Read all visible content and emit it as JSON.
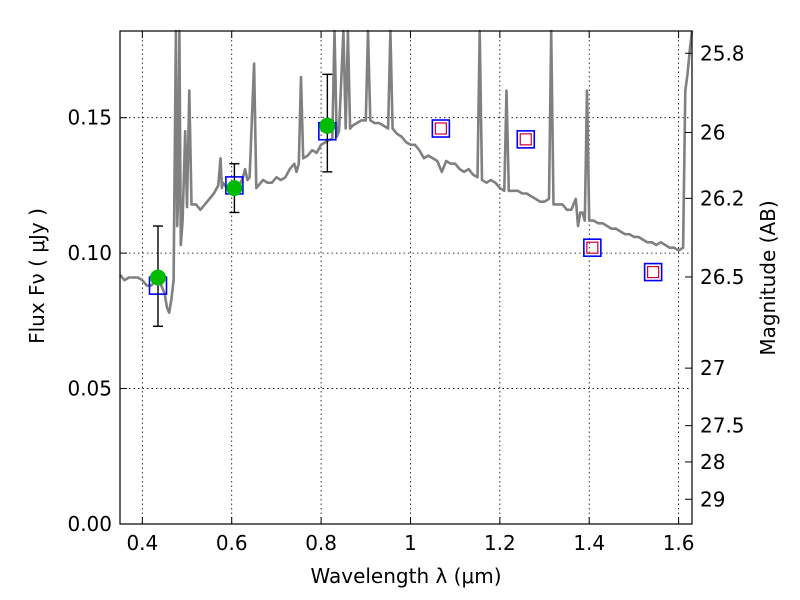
{
  "chart_data": {
    "type": "scatter",
    "xlabel": "Wavelength  λ (μm)",
    "ylabel": "Flux  Fν  ( μJy )",
    "y2label": "Magnitude (AB)",
    "xlim": [
      0.35,
      1.63
    ],
    "ylim": [
      0.0,
      0.182
    ],
    "grid": true,
    "x_ticks": [
      {
        "value": 0.4,
        "label": "0.4"
      },
      {
        "value": 0.6,
        "label": "0.6"
      },
      {
        "value": 0.8,
        "label": "0.8"
      },
      {
        "value": 1.0,
        "label": "1"
      },
      {
        "value": 1.2,
        "label": "1.2"
      },
      {
        "value": 1.4,
        "label": "1.4"
      },
      {
        "value": 1.6,
        "label": "1.6"
      }
    ],
    "y_ticks": [
      {
        "value": 0.0,
        "label": "0.00"
      },
      {
        "value": 0.05,
        "label": "0.05"
      },
      {
        "value": 0.1,
        "label": "0.10"
      },
      {
        "value": 0.15,
        "label": "0.15"
      }
    ],
    "mag_ticks": [
      {
        "mag": 25.8,
        "label": "25.8"
      },
      {
        "mag": 26.0,
        "label": "26"
      },
      {
        "mag": 26.2,
        "label": "26.2"
      },
      {
        "mag": 26.5,
        "label": "26.5"
      },
      {
        "mag": 27.0,
        "label": "27"
      },
      {
        "mag": 27.5,
        "label": "27.5"
      },
      {
        "mag": 28.0,
        "label": "28"
      },
      {
        "mag": 29.0,
        "label": "29"
      }
    ],
    "series": [
      {
        "kind": "spectrum",
        "color": "#808080",
        "points": [
          [
            0.35,
            0.092
          ],
          [
            0.36,
            0.09
          ],
          [
            0.37,
            0.091
          ],
          [
            0.38,
            0.091
          ],
          [
            0.39,
            0.091
          ],
          [
            0.4,
            0.09
          ],
          [
            0.41,
            0.088
          ],
          [
            0.42,
            0.088
          ],
          [
            0.43,
            0.09
          ],
          [
            0.44,
            0.089
          ],
          [
            0.45,
            0.085
          ],
          [
            0.455,
            0.08
          ],
          [
            0.46,
            0.078
          ],
          [
            0.465,
            0.083
          ],
          [
            0.47,
            0.09
          ],
          [
            0.475,
            0.182
          ],
          [
            0.478,
            0.11
          ],
          [
            0.48,
            0.12
          ],
          [
            0.483,
            0.182
          ],
          [
            0.486,
            0.103
          ],
          [
            0.49,
            0.112
          ],
          [
            0.496,
            0.145
          ],
          [
            0.5,
            0.117
          ],
          [
            0.505,
            0.16
          ],
          [
            0.51,
            0.118
          ],
          [
            0.52,
            0.118
          ],
          [
            0.53,
            0.116
          ],
          [
            0.54,
            0.118
          ],
          [
            0.55,
            0.12
          ],
          [
            0.56,
            0.122
          ],
          [
            0.57,
            0.125
          ],
          [
            0.575,
            0.135
          ],
          [
            0.578,
            0.124
          ],
          [
            0.58,
            0.126
          ],
          [
            0.59,
            0.124
          ],
          [
            0.6,
            0.122
          ],
          [
            0.61,
            0.124
          ],
          [
            0.62,
            0.126
          ],
          [
            0.625,
            0.128
          ],
          [
            0.63,
            0.131
          ],
          [
            0.635,
            0.127
          ],
          [
            0.64,
            0.128
          ],
          [
            0.65,
            0.17
          ],
          [
            0.655,
            0.124
          ],
          [
            0.66,
            0.125
          ],
          [
            0.67,
            0.127
          ],
          [
            0.68,
            0.126
          ],
          [
            0.69,
            0.126
          ],
          [
            0.7,
            0.128
          ],
          [
            0.71,
            0.127
          ],
          [
            0.72,
            0.128
          ],
          [
            0.73,
            0.131
          ],
          [
            0.74,
            0.133
          ],
          [
            0.745,
            0.13
          ],
          [
            0.75,
            0.133
          ],
          [
            0.755,
            0.165
          ],
          [
            0.76,
            0.135
          ],
          [
            0.77,
            0.136
          ],
          [
            0.78,
            0.138
          ],
          [
            0.79,
            0.137
          ],
          [
            0.8,
            0.14
          ],
          [
            0.81,
            0.141
          ],
          [
            0.82,
            0.142
          ],
          [
            0.825,
            0.142
          ],
          [
            0.83,
            0.182
          ],
          [
            0.835,
            0.143
          ],
          [
            0.84,
            0.145
          ],
          [
            0.85,
            0.182
          ],
          [
            0.855,
            0.146
          ],
          [
            0.86,
            0.182
          ],
          [
            0.865,
            0.146
          ],
          [
            0.87,
            0.147
          ],
          [
            0.88,
            0.148
          ],
          [
            0.89,
            0.149
          ],
          [
            0.9,
            0.149
          ],
          [
            0.905,
            0.182
          ],
          [
            0.91,
            0.149
          ],
          [
            0.92,
            0.148
          ],
          [
            0.93,
            0.148
          ],
          [
            0.94,
            0.147
          ],
          [
            0.95,
            0.146
          ],
          [
            0.955,
            0.182
          ],
          [
            0.96,
            0.146
          ],
          [
            0.97,
            0.144
          ],
          [
            0.98,
            0.143
          ],
          [
            0.99,
            0.141
          ],
          [
            1.0,
            0.14
          ],
          [
            1.01,
            0.14
          ],
          [
            1.02,
            0.138
          ],
          [
            1.03,
            0.135
          ],
          [
            1.04,
            0.136
          ],
          [
            1.05,
            0.135
          ],
          [
            1.06,
            0.134
          ],
          [
            1.07,
            0.13
          ],
          [
            1.08,
            0.134
          ],
          [
            1.09,
            0.133
          ],
          [
            1.1,
            0.133
          ],
          [
            1.11,
            0.131
          ],
          [
            1.12,
            0.13
          ],
          [
            1.13,
            0.131
          ],
          [
            1.14,
            0.129
          ],
          [
            1.15,
            0.128
          ],
          [
            1.155,
            0.182
          ],
          [
            1.16,
            0.127
          ],
          [
            1.17,
            0.126
          ],
          [
            1.18,
            0.127
          ],
          [
            1.19,
            0.126
          ],
          [
            1.2,
            0.124
          ],
          [
            1.21,
            0.123
          ],
          [
            1.215,
            0.16
          ],
          [
            1.22,
            0.123
          ],
          [
            1.23,
            0.123
          ],
          [
            1.24,
            0.123
          ],
          [
            1.25,
            0.122
          ],
          [
            1.26,
            0.122
          ],
          [
            1.27,
            0.121
          ],
          [
            1.28,
            0.12
          ],
          [
            1.29,
            0.119
          ],
          [
            1.3,
            0.119
          ],
          [
            1.31,
            0.12
          ],
          [
            1.315,
            0.182
          ],
          [
            1.32,
            0.118
          ],
          [
            1.33,
            0.118
          ],
          [
            1.34,
            0.118
          ],
          [
            1.35,
            0.116
          ],
          [
            1.36,
            0.116
          ],
          [
            1.37,
            0.12
          ],
          [
            1.375,
            0.11
          ],
          [
            1.38,
            0.115
          ],
          [
            1.385,
            0.115
          ],
          [
            1.39,
            0.112
          ],
          [
            1.395,
            0.16
          ],
          [
            1.4,
            0.112
          ],
          [
            1.41,
            0.112
          ],
          [
            1.42,
            0.111
          ],
          [
            1.43,
            0.111
          ],
          [
            1.44,
            0.11
          ],
          [
            1.45,
            0.109
          ],
          [
            1.46,
            0.109
          ],
          [
            1.47,
            0.108
          ],
          [
            1.48,
            0.107
          ],
          [
            1.49,
            0.107
          ],
          [
            1.5,
            0.106
          ],
          [
            1.51,
            0.106
          ],
          [
            1.52,
            0.105
          ],
          [
            1.53,
            0.104
          ],
          [
            1.54,
            0.104
          ],
          [
            1.55,
            0.103
          ],
          [
            1.56,
            0.104
          ],
          [
            1.57,
            0.103
          ],
          [
            1.58,
            0.102
          ],
          [
            1.59,
            0.102
          ],
          [
            1.6,
            0.101
          ],
          [
            1.61,
            0.102
          ],
          [
            1.615,
            0.16
          ],
          [
            1.62,
            0.166
          ],
          [
            1.625,
            0.175
          ],
          [
            1.63,
            0.182
          ]
        ]
      },
      {
        "kind": "model-photometry",
        "color": "#0000ff",
        "points": [
          [
            0.435,
            0.088
          ],
          [
            0.606,
            0.125
          ],
          [
            0.814,
            0.145
          ],
          [
            1.068,
            0.146
          ],
          [
            1.258,
            0.142
          ],
          [
            1.407,
            0.102
          ],
          [
            1.543,
            0.093
          ]
        ]
      },
      {
        "kind": "predicted-photometry",
        "color": "#cc0033",
        "points": [
          [
            1.068,
            0.146
          ],
          [
            1.258,
            0.142
          ],
          [
            1.407,
            0.102
          ],
          [
            1.543,
            0.093
          ]
        ]
      },
      {
        "kind": "observed-photometry",
        "color": "#00bb00",
        "points": [
          {
            "x": 0.435,
            "y": 0.091,
            "ylow": 0.073,
            "yhigh": 0.11
          },
          {
            "x": 0.606,
            "y": 0.124,
            "ylow": 0.115,
            "yhigh": 0.133
          },
          {
            "x": 0.814,
            "y": 0.147,
            "ylow": 0.13,
            "yhigh": 0.166
          }
        ]
      }
    ]
  }
}
